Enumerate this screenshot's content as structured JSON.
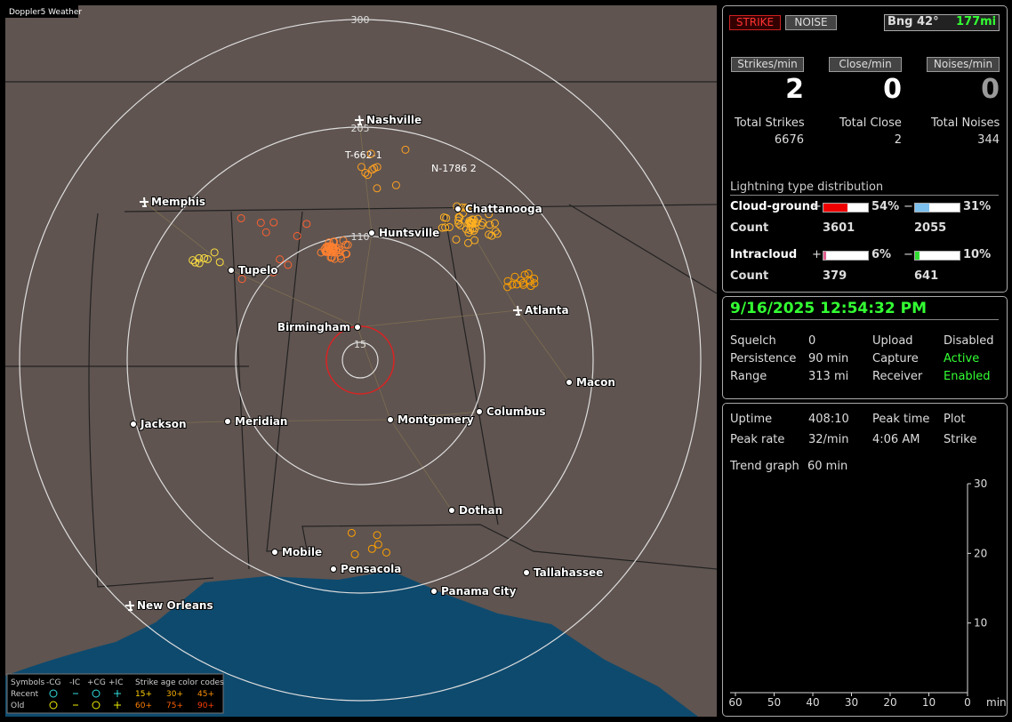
{
  "map": {
    "title": "Doppler5 Weather",
    "rings": [
      "300",
      "205",
      "110",
      "15"
    ],
    "tracks": [
      "T-662-1",
      "N-1786 2"
    ],
    "cities": [
      "Nashville",
      "Memphis",
      "Chattanooga",
      "Huntsville",
      "Tupelo",
      "Atlanta",
      "Birmingham",
      "Macon",
      "Columbus",
      "Montgomery",
      "Meridian",
      "Jackson",
      "Dothan",
      "Mobile",
      "Pensacola",
      "Tallahassee",
      "Panama City",
      "New Orleans"
    ]
  },
  "legend": {
    "symbols": "Symbols",
    "headers": [
      "-CG",
      "-IC",
      "+CG",
      "+IC"
    ],
    "rows": [
      "Recent",
      "Old"
    ],
    "age_title": "Strike age color codes",
    "recent_ages": [
      "15+",
      "30+",
      "45+"
    ],
    "old_ages": [
      "60+",
      "75+",
      "90+"
    ]
  },
  "status": {
    "strike": "STRIKE",
    "noise": "NOISE",
    "bearing": "Bng 42°",
    "distance": "177mi"
  },
  "rates": [
    {
      "label": "Strikes/min",
      "value": 2
    },
    {
      "label": "Close/min",
      "value": 0
    },
    {
      "label": "Noises/min",
      "value": 0
    }
  ],
  "totals": [
    {
      "label": "Total Strikes",
      "value": 6676
    },
    {
      "label": "Total Close",
      "value": 2
    },
    {
      "label": "Total Noises",
      "value": 344
    }
  ],
  "distribution": {
    "title": "Lightning type distribution",
    "count_label": "Count",
    "cloud_ground": {
      "label": "Cloud-ground",
      "positive": {
        "value": 54,
        "label": "54%"
      },
      "negative": {
        "value": 31,
        "label": "31%"
      },
      "positive_count": 3601,
      "negative_count": 2055
    },
    "intracloud": {
      "label": "Intracloud",
      "positive": {
        "value": 6,
        "label": "6%"
      },
      "negative": {
        "value": 10,
        "label": "10%"
      },
      "positive_count": 379,
      "negative_count": 641
    }
  },
  "datetime": "9/16/2025 12:54:32 PM",
  "settings": [
    [
      "Squelch",
      "0",
      "Upload",
      "Disabled"
    ],
    [
      "Persistence",
      "90 min",
      "Capture",
      "Active"
    ],
    [
      "Range",
      "313 mi",
      "Receiver",
      "Enabled"
    ]
  ],
  "stats": [
    [
      "Uptime",
      "408:10",
      "Peak time",
      "Plot"
    ],
    [
      "Peak rate",
      "32/min",
      "4:06 AM",
      "Strike"
    ]
  ],
  "trend": {
    "label": "Trend graph",
    "span": "60 min",
    "yticks": [
      30,
      20,
      10
    ],
    "xticks": [
      60,
      50,
      40,
      30,
      20,
      10,
      0
    ],
    "unit": "min"
  }
}
